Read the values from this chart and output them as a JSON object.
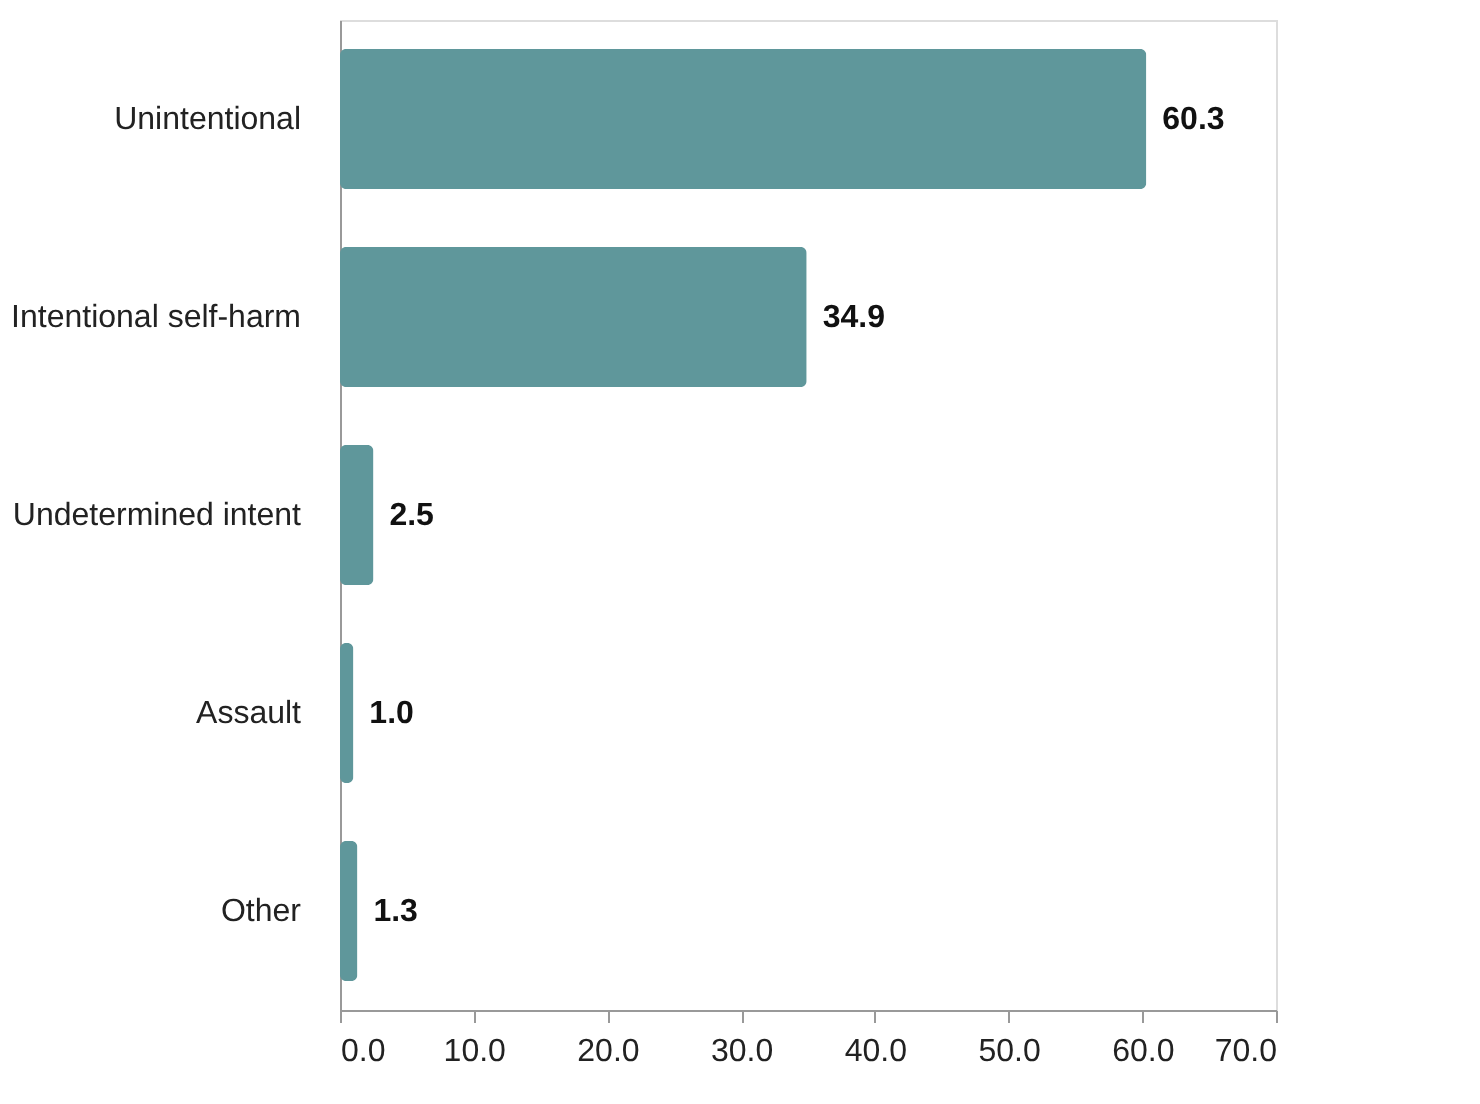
{
  "chart_data": {
    "type": "bar",
    "orientation": "horizontal",
    "categories": [
      "Unintentional",
      "Intentional self-harm",
      "Undetermined intent",
      "Assault",
      "Other"
    ],
    "values": [
      60.3,
      34.9,
      2.5,
      1.0,
      1.3
    ],
    "color": "#5f979b",
    "xlim": [
      0,
      70
    ],
    "xticks": [
      {
        "value": 0,
        "label": "0.0"
      },
      {
        "value": 10,
        "label": "10.0"
      },
      {
        "value": 20,
        "label": "20.0"
      },
      {
        "value": 30,
        "label": "30.0"
      },
      {
        "value": 40,
        "label": "40.0"
      },
      {
        "value": 50,
        "label": "50.0"
      },
      {
        "value": 60,
        "label": "60.0"
      },
      {
        "value": 70,
        "label": "70.0"
      }
    ],
    "value_labels": [
      "60.3",
      "34.9",
      "2.5",
      "1.0",
      "1.3"
    ],
    "grid": false
  }
}
